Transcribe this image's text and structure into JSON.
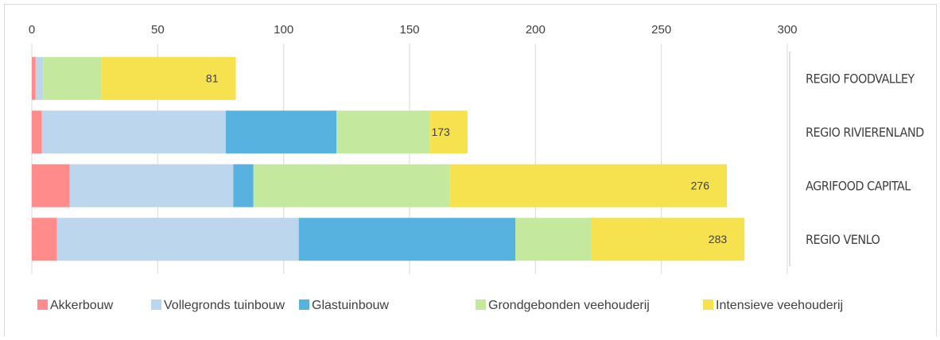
{
  "chart_data": {
    "type": "bar",
    "orientation": "horizontal",
    "stacked": true,
    "categories": [
      "REGIO FOODVALLEY",
      "REGIO RIVIERENLAND",
      "AGRIFOOD CAPITAL",
      "REGIO VENLO"
    ],
    "series": [
      {
        "name": "Akkerbouw",
        "color": "#ff8b8b",
        "values": [
          1.5,
          4,
          15,
          10
        ]
      },
      {
        "name": "Vollegronds tuinbouw",
        "color": "#bcd6ee",
        "values": [
          3,
          73,
          65,
          96
        ]
      },
      {
        "name": "Glastuinbouw",
        "color": "#58b2df",
        "values": [
          0,
          44,
          8,
          86
        ]
      },
      {
        "name": "Grondgebonden veehouderij",
        "color": "#c4e99e",
        "values": [
          23,
          37,
          78,
          30
        ]
      },
      {
        "name": "Intensieve veehouderij",
        "color": "#f6e14f",
        "values": [
          53.5,
          15,
          110,
          61
        ]
      }
    ],
    "totals": [
      81,
      173,
      276,
      283
    ],
    "xlim": [
      0,
      300
    ],
    "xticks": [
      0,
      50,
      100,
      150,
      200,
      250,
      300
    ],
    "grid": true,
    "legend": "bottom"
  }
}
